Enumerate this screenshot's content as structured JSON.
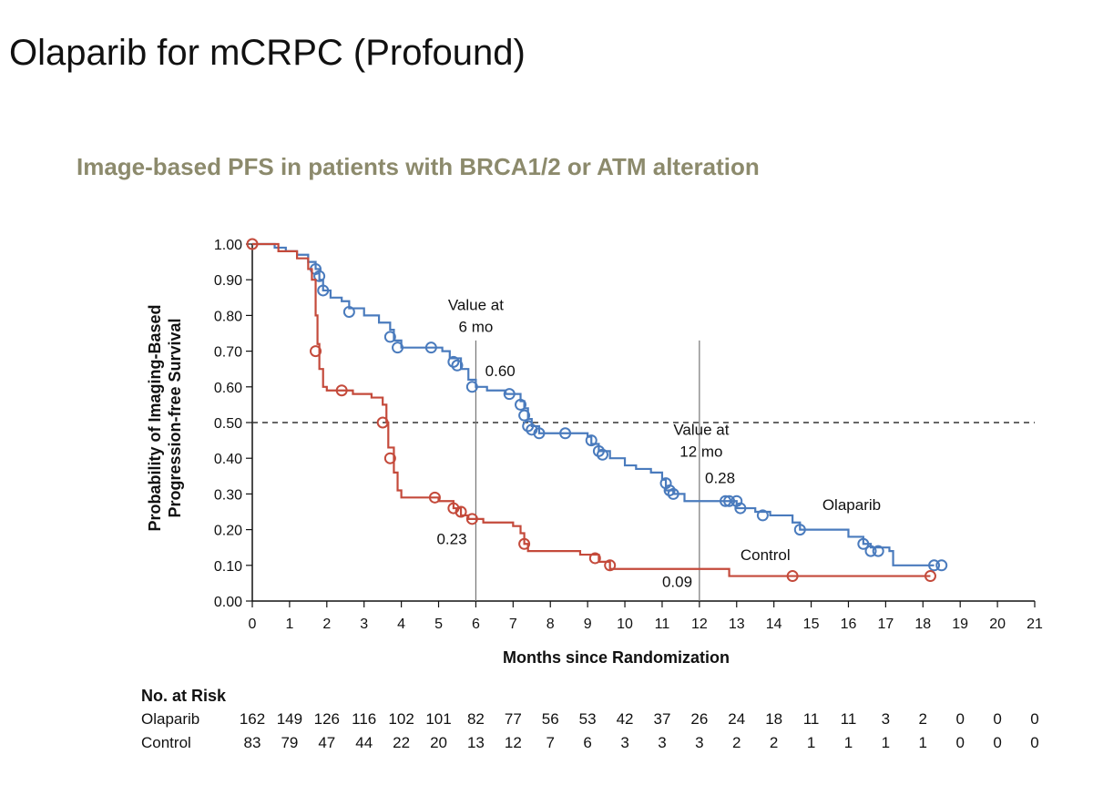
{
  "slide": {
    "title": "Olaparib for mCRPC (Profound)"
  },
  "chart_data": {
    "type": "line",
    "subtitle": "Image-based PFS in patients with BRCA1/2 or ATM alteration",
    "xlabel": "Months since Randomization",
    "ylabel_lines": [
      "Probability of Imaging-Based",
      "Progression-free Survival"
    ],
    "xlim": [
      0,
      21
    ],
    "ylim": [
      0,
      1
    ],
    "x_ticks": [
      "0",
      "1",
      "2",
      "3",
      "4",
      "5",
      "6",
      "7",
      "8",
      "9",
      "10",
      "11",
      "12",
      "13",
      "14",
      "15",
      "16",
      "17",
      "18",
      "19",
      "20",
      "21"
    ],
    "y_ticks": [
      "0.00",
      "0.10",
      "0.20",
      "0.30",
      "0.40",
      "0.50",
      "0.60",
      "0.70",
      "0.80",
      "0.90",
      "1.00"
    ],
    "reference_line_y": 0.5,
    "series": [
      {
        "name": "Olaparib",
        "color": "#4a7bbd",
        "steps": [
          [
            0,
            1.0
          ],
          [
            0.6,
            0.99
          ],
          [
            0.9,
            0.98
          ],
          [
            1.2,
            0.97
          ],
          [
            1.5,
            0.95
          ],
          [
            1.7,
            0.93
          ],
          [
            1.8,
            0.9
          ],
          [
            1.9,
            0.87
          ],
          [
            2.1,
            0.85
          ],
          [
            2.4,
            0.84
          ],
          [
            2.6,
            0.82
          ],
          [
            3.0,
            0.8
          ],
          [
            3.4,
            0.78
          ],
          [
            3.7,
            0.76
          ],
          [
            3.8,
            0.73
          ],
          [
            4.0,
            0.71
          ],
          [
            4.5,
            0.71
          ],
          [
            5.1,
            0.7
          ],
          [
            5.3,
            0.68
          ],
          [
            5.6,
            0.65
          ],
          [
            5.8,
            0.62
          ],
          [
            6.0,
            0.6
          ],
          [
            6.3,
            0.59
          ],
          [
            6.8,
            0.58
          ],
          [
            7.2,
            0.56
          ],
          [
            7.3,
            0.54
          ],
          [
            7.4,
            0.51
          ],
          [
            7.5,
            0.49
          ],
          [
            7.7,
            0.47
          ],
          [
            8.5,
            0.47
          ],
          [
            9.0,
            0.46
          ],
          [
            9.1,
            0.44
          ],
          [
            9.3,
            0.42
          ],
          [
            9.6,
            0.4
          ],
          [
            10.0,
            0.38
          ],
          [
            10.3,
            0.37
          ],
          [
            10.7,
            0.36
          ],
          [
            11.0,
            0.34
          ],
          [
            11.1,
            0.31
          ],
          [
            11.3,
            0.3
          ],
          [
            11.6,
            0.28
          ],
          [
            12.8,
            0.28
          ],
          [
            13.0,
            0.26
          ],
          [
            13.5,
            0.25
          ],
          [
            13.9,
            0.24
          ],
          [
            14.5,
            0.22
          ],
          [
            14.7,
            0.2
          ],
          [
            15.6,
            0.2
          ],
          [
            16.0,
            0.18
          ],
          [
            16.4,
            0.16
          ],
          [
            16.6,
            0.15
          ],
          [
            17.1,
            0.14
          ],
          [
            17.2,
            0.1
          ],
          [
            18.3,
            0.1
          ]
        ],
        "censors": [
          [
            1.7,
            0.93
          ],
          [
            1.8,
            0.91
          ],
          [
            1.9,
            0.87
          ],
          [
            2.6,
            0.81
          ],
          [
            3.7,
            0.74
          ],
          [
            3.9,
            0.71
          ],
          [
            4.8,
            0.71
          ],
          [
            5.4,
            0.67
          ],
          [
            5.5,
            0.66
          ],
          [
            5.9,
            0.6
          ],
          [
            6.9,
            0.58
          ],
          [
            7.2,
            0.55
          ],
          [
            7.3,
            0.52
          ],
          [
            7.4,
            0.49
          ],
          [
            7.5,
            0.48
          ],
          [
            7.7,
            0.47
          ],
          [
            8.4,
            0.47
          ],
          [
            9.1,
            0.45
          ],
          [
            9.3,
            0.42
          ],
          [
            9.4,
            0.41
          ],
          [
            11.1,
            0.33
          ],
          [
            11.2,
            0.31
          ],
          [
            11.3,
            0.3
          ],
          [
            12.7,
            0.28
          ],
          [
            12.8,
            0.28
          ],
          [
            13.0,
            0.28
          ],
          [
            13.1,
            0.26
          ],
          [
            13.7,
            0.24
          ],
          [
            14.7,
            0.2
          ],
          [
            16.4,
            0.16
          ],
          [
            16.6,
            0.14
          ],
          [
            16.8,
            0.14
          ],
          [
            18.3,
            0.1
          ],
          [
            18.5,
            0.1
          ]
        ],
        "label": "Olaparib",
        "label_pos": [
          15.3,
          0.255
        ]
      },
      {
        "name": "Control",
        "color": "#c44a3b",
        "steps": [
          [
            0,
            1.0
          ],
          [
            0.7,
            0.98
          ],
          [
            1.2,
            0.96
          ],
          [
            1.5,
            0.93
          ],
          [
            1.6,
            0.9
          ],
          [
            1.7,
            0.8
          ],
          [
            1.75,
            0.72
          ],
          [
            1.8,
            0.65
          ],
          [
            1.9,
            0.6
          ],
          [
            2.0,
            0.59
          ],
          [
            2.7,
            0.58
          ],
          [
            3.2,
            0.57
          ],
          [
            3.5,
            0.55
          ],
          [
            3.6,
            0.5
          ],
          [
            3.65,
            0.43
          ],
          [
            3.8,
            0.36
          ],
          [
            3.9,
            0.31
          ],
          [
            4.0,
            0.29
          ],
          [
            5.0,
            0.28
          ],
          [
            5.4,
            0.26
          ],
          [
            5.6,
            0.24
          ],
          [
            5.8,
            0.23
          ],
          [
            6.2,
            0.22
          ],
          [
            7.0,
            0.21
          ],
          [
            7.2,
            0.19
          ],
          [
            7.3,
            0.16
          ],
          [
            7.4,
            0.14
          ],
          [
            8.8,
            0.13
          ],
          [
            9.3,
            0.11
          ],
          [
            9.6,
            0.09
          ],
          [
            12.8,
            0.07
          ],
          [
            18.2,
            0.07
          ]
        ],
        "censors": [
          [
            0,
            1.0
          ],
          [
            1.7,
            0.7
          ],
          [
            2.4,
            0.59
          ],
          [
            3.5,
            0.5
          ],
          [
            3.7,
            0.4
          ],
          [
            4.9,
            0.29
          ],
          [
            5.4,
            0.26
          ],
          [
            5.6,
            0.25
          ],
          [
            5.9,
            0.23
          ],
          [
            7.3,
            0.16
          ],
          [
            9.2,
            0.12
          ],
          [
            9.6,
            0.1
          ],
          [
            14.5,
            0.07
          ],
          [
            18.2,
            0.07
          ]
        ],
        "label": "Control",
        "label_pos": [
          13.1,
          0.115
        ]
      }
    ],
    "annotations": [
      {
        "id": "value-6mo-title",
        "lines": [
          "Value at",
          "6 mo"
        ],
        "x": 6.0,
        "y_top": 0.815
      },
      {
        "id": "value-12mo-title",
        "lines": [
          "Value at",
          "12 mo"
        ],
        "x": 12.05,
        "y_top": 0.465
      },
      {
        "id": "olaparib-6mo-value",
        "text": "0.60",
        "x": 6.25,
        "y": 0.63,
        "series": "Olaparib"
      },
      {
        "id": "control-6mo-value",
        "text": "0.23",
        "x": 4.95,
        "y": 0.16,
        "series": "Control"
      },
      {
        "id": "olaparib-12mo-value",
        "text": "0.28",
        "x": 12.15,
        "y": 0.33,
        "series": "Olaparib"
      },
      {
        "id": "control-12mo-value",
        "text": "0.09",
        "x": 11.0,
        "y": 0.04,
        "series": "Control"
      }
    ],
    "marker_lines_x": [
      6,
      12
    ],
    "marker_line_top": 0.73,
    "risk_table": {
      "title": "No. at Risk",
      "rows": [
        {
          "label": "Olaparib",
          "values": [
            "162",
            "149",
            "126",
            "116",
            "102",
            "101",
            "82",
            "77",
            "56",
            "53",
            "42",
            "37",
            "26",
            "24",
            "18",
            "11",
            "11",
            "3",
            "2",
            "0",
            "0",
            "0"
          ]
        },
        {
          "label": "Control",
          "values": [
            "83",
            "79",
            "47",
            "44",
            "22",
            "20",
            "13",
            "12",
            "7",
            "6",
            "3",
            "3",
            "3",
            "2",
            "2",
            "1",
            "1",
            "1",
            "1",
            "0",
            "0",
            "0"
          ]
        }
      ]
    }
  }
}
